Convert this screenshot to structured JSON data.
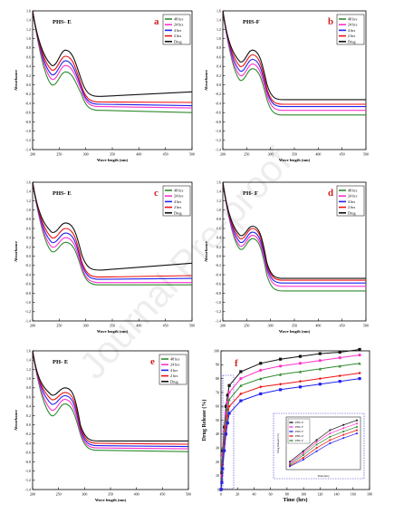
{
  "watermark": "Journal Pre-proof",
  "chart_data": [
    {
      "type": "line",
      "panel_letter": "a",
      "sample": "PHS- E",
      "xlabel": "Wave length (nm)",
      "ylabel": "Absorbance",
      "xlim": [
        200,
        500
      ],
      "ylim": [
        -1.4,
        1.6
      ],
      "xticks": [
        200,
        250,
        300,
        350,
        400,
        450,
        500
      ],
      "yticks": [
        -1.4,
        -1.2,
        -1.0,
        -0.8,
        -0.6,
        -0.4,
        -0.2,
        0.0,
        0.2,
        0.4,
        0.6,
        0.8,
        1.0,
        1.2,
        1.4,
        1.6
      ],
      "legend": [
        "48 hrs",
        "24 hrs",
        "4 hrs",
        "2 hrs",
        "Drug"
      ],
      "colors": [
        "#2e8b2e",
        "#ff33cc",
        "#2222ee",
        "#ee1111",
        "#111111"
      ],
      "peak_x": 262,
      "start_y": 1.6,
      "trough_y": [
        0.0,
        0.12,
        0.22,
        0.32,
        0.42
      ],
      "peak_y": [
        0.28,
        0.42,
        0.52,
        0.62,
        0.75
      ],
      "plateau_y": [
        -0.55,
        -0.47,
        -0.42,
        -0.37,
        -0.25
      ],
      "end_y": [
        -0.6,
        -0.5,
        -0.45,
        -0.38,
        -0.15
      ]
    },
    {
      "type": "line",
      "panel_letter": "b",
      "sample": "PHS-F",
      "xlabel": "Wave length (nm)",
      "ylabel": "Absorbance",
      "xlim": [
        200,
        500
      ],
      "ylim": [
        -1.4,
        1.6
      ],
      "xticks": [
        200,
        250,
        300,
        350,
        400,
        450,
        500
      ],
      "yticks": [
        -1.4,
        -1.2,
        -1.0,
        -0.8,
        -0.6,
        -0.4,
        -0.2,
        0.0,
        0.2,
        0.4,
        0.6,
        0.8,
        1.0,
        1.2,
        1.4,
        1.6
      ],
      "legend": [
        "48 hrs",
        "24 hrs",
        "4 hrs",
        "2 hrs",
        "Drug"
      ],
      "colors": [
        "#2e8b2e",
        "#ff33cc",
        "#2222ee",
        "#ee1111",
        "#111111"
      ],
      "peak_x": 262,
      "start_y": 1.6,
      "trough_y": [
        0.1,
        0.2,
        0.3,
        0.4,
        0.5
      ],
      "peak_y": [
        0.35,
        0.45,
        0.55,
        0.65,
        0.75
      ],
      "plateau_y": [
        -0.65,
        -0.55,
        -0.47,
        -0.42,
        -0.32
      ],
      "end_y": [
        -0.65,
        -0.55,
        -0.47,
        -0.42,
        -0.32
      ]
    },
    {
      "type": "line",
      "panel_letter": "c",
      "sample": "PHS- E",
      "xlabel": "Wave length (nm)",
      "ylabel": "Absorbance",
      "xlim": [
        200,
        500
      ],
      "ylim": [
        -1.4,
        1.6
      ],
      "xticks": [
        200,
        250,
        300,
        350,
        400,
        450,
        500
      ],
      "yticks": [
        -1.4,
        -1.2,
        -1.0,
        -0.8,
        -0.6,
        -0.4,
        -0.2,
        0.0,
        0.2,
        0.4,
        0.6,
        0.8,
        1.0,
        1.2,
        1.4,
        1.6
      ],
      "legend": [
        "48 hrs",
        "24 hrs",
        "4 hrs",
        "2 hrs",
        "Drug"
      ],
      "colors": [
        "#2e8b2e",
        "#ff33cc",
        "#2222ee",
        "#ee1111",
        "#111111"
      ],
      "peak_x": 262,
      "start_y": 1.6,
      "trough_y": [
        0.1,
        0.2,
        0.3,
        0.4,
        0.52
      ],
      "peak_y": [
        0.3,
        0.4,
        0.5,
        0.6,
        0.72
      ],
      "plateau_y": [
        -0.62,
        -0.57,
        -0.5,
        -0.45,
        -0.3
      ],
      "end_y": [
        -0.62,
        -0.57,
        -0.48,
        -0.42,
        -0.15
      ]
    },
    {
      "type": "line",
      "panel_letter": "d",
      "sample": "PH- F",
      "xlabel": "Wave length (nm)",
      "ylabel": "Absorbance",
      "xlim": [
        200,
        500
      ],
      "ylim": [
        -1.4,
        1.6
      ],
      "xticks": [
        200,
        250,
        300,
        350,
        400,
        450,
        500
      ],
      "yticks": [
        -1.4,
        -1.2,
        -1.0,
        -0.8,
        -0.6,
        -0.4,
        -0.2,
        0.0,
        0.2,
        0.4,
        0.6,
        0.8,
        1.0,
        1.2,
        1.4,
        1.6
      ],
      "legend": [
        "48 hrs",
        "24 hrs",
        "4 hrs",
        "2 hrs",
        "Drug"
      ],
      "colors": [
        "#2e8b2e",
        "#ff33cc",
        "#2222ee",
        "#ee1111",
        "#111111"
      ],
      "peak_x": 262,
      "start_y": 1.6,
      "trough_y": [
        0.15,
        0.22,
        0.3,
        0.38,
        0.45
      ],
      "peak_y": [
        0.38,
        0.45,
        0.52,
        0.6,
        0.65
      ],
      "plateau_y": [
        -0.75,
        -0.65,
        -0.58,
        -0.52,
        -0.48
      ],
      "end_y": [
        -0.75,
        -0.65,
        -0.58,
        -0.52,
        -0.48
      ]
    },
    {
      "type": "line",
      "panel_letter": "e",
      "sample": "PH- E",
      "xlabel": "Wave length (nm)",
      "ylabel": "Absorbance",
      "xlim": [
        200,
        500
      ],
      "ylim": [
        -1.4,
        1.6
      ],
      "xticks": [
        200,
        250,
        300,
        350,
        400,
        450,
        500
      ],
      "yticks": [
        -1.4,
        -1.2,
        -1.0,
        -0.8,
        -0.6,
        -0.4,
        -0.2,
        0.0,
        0.2,
        0.4,
        0.6,
        0.8,
        1.0,
        1.2,
        1.4,
        1.6
      ],
      "legend": [
        "48 hrs",
        "24 hrs",
        "4 hrs",
        "2 hrs",
        "Drug"
      ],
      "colors": [
        "#2e8b2e",
        "#ff33cc",
        "#2222ee",
        "#ee1111",
        "#111111"
      ],
      "peak_x": 262,
      "start_y": 1.6,
      "trough_y": [
        0.2,
        0.32,
        0.45,
        0.55,
        0.65
      ],
      "peak_y": [
        0.45,
        0.55,
        0.63,
        0.7,
        0.8
      ],
      "plateau_y": [
        -0.55,
        -0.5,
        -0.45,
        -0.4,
        -0.35
      ],
      "end_y": [
        -0.58,
        -0.52,
        -0.47,
        -0.42,
        -0.35
      ]
    },
    {
      "type": "line",
      "panel_letter": "f",
      "xlabel": "Time (hrs)",
      "ylabel": "Drug Release (%)",
      "xlim": [
        0,
        180
      ],
      "ylim": [
        0,
        100
      ],
      "xticks": [
        0,
        20,
        40,
        60,
        80,
        100,
        120,
        140,
        160,
        180
      ],
      "yticks": [
        0,
        10,
        20,
        30,
        40,
        50,
        60,
        70,
        80,
        90,
        100
      ],
      "x": [
        0,
        1,
        2,
        4,
        6,
        8,
        10,
        24,
        48,
        72,
        96,
        120,
        144,
        168
      ],
      "series": [
        {
          "name": "PHS- E",
          "color": "#111111",
          "values": [
            0,
            12,
            28,
            45,
            60,
            68,
            75,
            85,
            91,
            94,
            96,
            98,
            99,
            101
          ]
        },
        {
          "name": "PHS- F",
          "color": "#ff33cc",
          "values": [
            0,
            10,
            25,
            42,
            55,
            63,
            70,
            80,
            86,
            89,
            91,
            93,
            95,
            97
          ]
        },
        {
          "name": "PH- E",
          "color": "#2e8b2e",
          "values": [
            0,
            8,
            22,
            38,
            50,
            58,
            65,
            75,
            80,
            83,
            85,
            87,
            89,
            91
          ]
        },
        {
          "name": "PH- F",
          "color": "#ee1111",
          "values": [
            0,
            6,
            18,
            33,
            45,
            53,
            60,
            69,
            74,
            76,
            78,
            80,
            82,
            84
          ]
        },
        {
          "name": "PSH- F",
          "color": "#2222ee",
          "values": [
            0,
            5,
            15,
            28,
            40,
            48,
            55,
            64,
            69,
            72,
            74,
            76,
            78,
            80
          ]
        }
      ],
      "inset": {
        "xlabel": "Time (hrs)",
        "ylabel": "Drug Release (%)",
        "legend": [
          "PHS- E",
          "PHS- F",
          "PSH- F",
          "PHS- E",
          "PHS- F"
        ],
        "legend_colors": [
          "#111111",
          "#ff33cc",
          "#2222ee",
          "#ee1111",
          "#2e8b2e"
        ]
      }
    }
  ]
}
